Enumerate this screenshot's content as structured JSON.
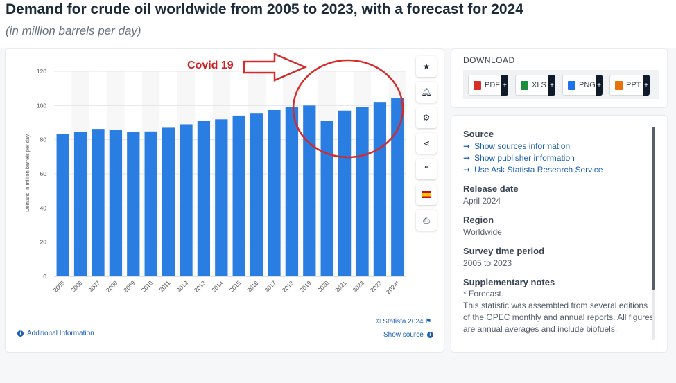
{
  "header": {
    "title": "Demand for crude oil worldwide from 2005 to 2023, with a forecast for 2024",
    "subtitle": "(in million barrels per day)"
  },
  "chart_data": {
    "type": "bar",
    "categories": [
      "2005",
      "2006",
      "2007",
      "2008",
      "2009",
      "2010",
      "2011",
      "2012",
      "2013",
      "2014",
      "2015",
      "2016",
      "2017",
      "2018",
      "2019",
      "2020",
      "2021",
      "2022",
      "2023",
      "2024*"
    ],
    "values": [
      83.3,
      84.6,
      86.3,
      85.8,
      84.6,
      84.8,
      87.0,
      89.0,
      90.9,
      91.9,
      94.1,
      95.6,
      97.3,
      99.0,
      100.0,
      90.9,
      97.0,
      99.3,
      102.1,
      104.2
    ],
    "ylabel": "Demand in million barrels per day",
    "xlabel": "",
    "ylim": [
      0,
      120
    ],
    "yticks": [
      0,
      20,
      40,
      60,
      80,
      100,
      120
    ],
    "grid": true,
    "bar_color": "#2a7de1",
    "annotation": {
      "text": "Covid 19",
      "color": "#cc1f1f"
    }
  },
  "chart_footer": {
    "credit": "© Statista 2024",
    "additional_info": "Additional Information",
    "show_source": "Show source"
  },
  "toolbar": {
    "icons": [
      "star-icon",
      "bell-icon",
      "gear-icon",
      "share-icon",
      "quote-icon",
      "spain-flag-icon",
      "print-icon"
    ]
  },
  "download": {
    "title": "DOWNLOAD",
    "buttons": [
      {
        "label": "PDF",
        "icon": "pdf-file-icon",
        "color": "#d93025"
      },
      {
        "label": "XLS",
        "icon": "xls-file-icon",
        "color": "#1e8e3e"
      },
      {
        "label": "PNG",
        "icon": "png-file-icon",
        "color": "#1a73e8"
      },
      {
        "label": "PPT",
        "icon": "ppt-file-icon",
        "color": "#e8710a"
      }
    ],
    "plus": "+"
  },
  "info": {
    "source_heading": "Source",
    "source_links": [
      "Show sources information",
      "Show publisher information",
      "Use Ask Statista Research Service"
    ],
    "release_heading": "Release date",
    "release_value": "April 2024",
    "region_heading": "Region",
    "region_value": "Worldwide",
    "survey_heading": "Survey time period",
    "survey_value": "2005 to 2023",
    "notes_heading": "Supplementary notes",
    "notes_lines": [
      "* Forecast.",
      "This statistic was assembled from several editions",
      "of the OPEC monthly and annual reports. All figures",
      "are annual averages and include biofuels."
    ]
  }
}
